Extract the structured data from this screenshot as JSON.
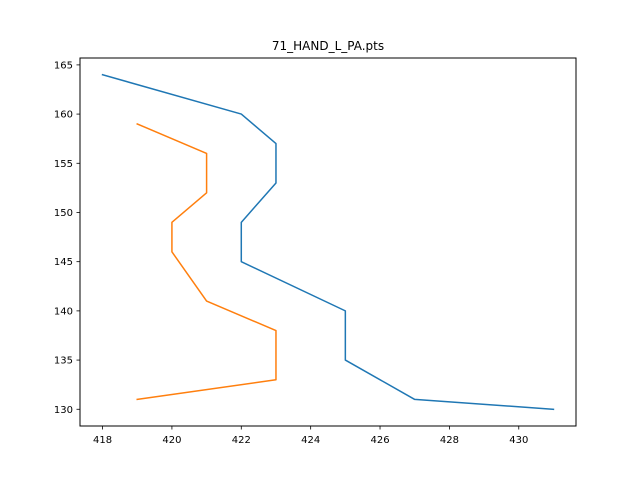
{
  "chart_data": {
    "type": "line",
    "title": "71_HAND_L_PA.pts",
    "xlabel": "",
    "ylabel": "",
    "xlim": [
      417.35,
      431.65
    ],
    "ylim": [
      128.3,
      165.7
    ],
    "xticks": [
      418,
      420,
      422,
      424,
      426,
      428,
      430
    ],
    "yticks": [
      130,
      135,
      140,
      145,
      150,
      155,
      160,
      165
    ],
    "grid": false,
    "series": [
      {
        "color": "#1f77b4",
        "points": [
          [
            418,
            164
          ],
          [
            422,
            160
          ],
          [
            423,
            157
          ],
          [
            423,
            153
          ],
          [
            422,
            149
          ],
          [
            422,
            145
          ],
          [
            425,
            140
          ],
          [
            425,
            135
          ],
          [
            427,
            131
          ],
          [
            431,
            130
          ]
        ]
      },
      {
        "color": "#ff7f0e",
        "points": [
          [
            419,
            159
          ],
          [
            421,
            156
          ],
          [
            421,
            152
          ],
          [
            420,
            149
          ],
          [
            420,
            146
          ],
          [
            421,
            141
          ],
          [
            423,
            138
          ],
          [
            423,
            133
          ],
          [
            419,
            131
          ]
        ]
      }
    ]
  }
}
